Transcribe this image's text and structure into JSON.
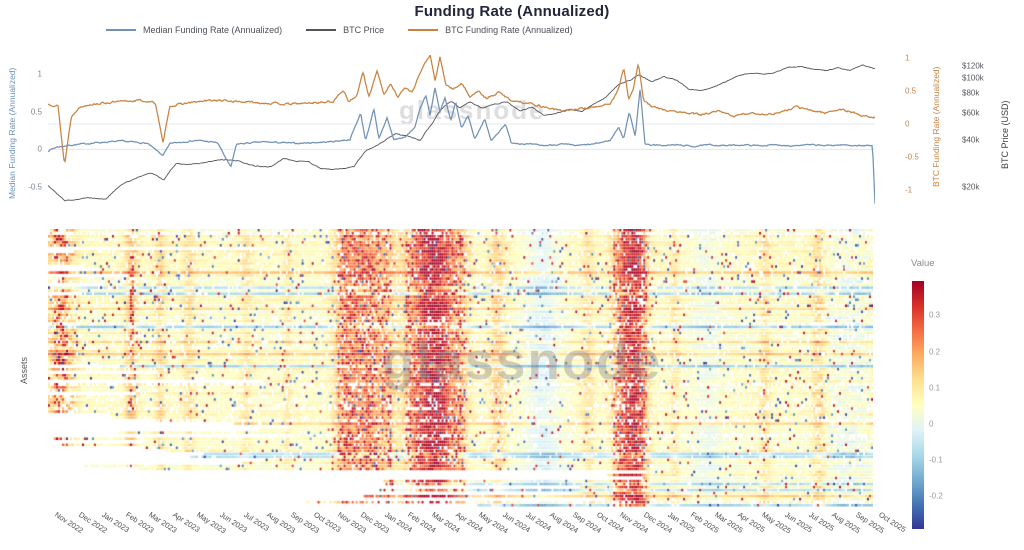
{
  "title": "Funding Rate (Annualized)",
  "watermark": "glassnode",
  "legend": [
    {
      "label": "Median Funding Rate (Annualized)",
      "color": "#7192b4"
    },
    {
      "label": "BTC Price",
      "color": "#53555d"
    },
    {
      "label": "BTC Funding Rate (Annualized)",
      "color": "#c9823f"
    }
  ],
  "axes": {
    "left_funding": {
      "label": "Median Funding Rate (Annualized)",
      "color": "#6b92b5",
      "tick_color": "#7d8896",
      "ticks": [
        {
          "v": 1,
          "label": "1"
        },
        {
          "v": 0.5,
          "label": "0.5"
        },
        {
          "v": 0,
          "label": "0"
        },
        {
          "v": -0.5,
          "label": "-0.5"
        }
      ]
    },
    "right_funding": {
      "label": "BTC Funding Rate (Annualized)",
      "color": "#c9823f",
      "tick_color": "#c08552",
      "ticks": [
        {
          "v": 1,
          "label": "1"
        },
        {
          "v": 0.5,
          "label": "0.5"
        },
        {
          "v": 0,
          "label": "0"
        },
        {
          "v": -0.5,
          "label": "-0.5"
        },
        {
          "v": -1,
          "label": "-1"
        }
      ]
    },
    "right_price": {
      "label": "BTC Price (USD)",
      "color": "#3a3d45",
      "tick_color": "#55585f",
      "ticks": [
        {
          "v": 120000,
          "label": "$120k"
        },
        {
          "v": 100000,
          "label": "$100k"
        },
        {
          "v": 80000,
          "label": "$80k"
        },
        {
          "v": 60000,
          "label": "$60k"
        },
        {
          "v": 40000,
          "label": "$40k"
        },
        {
          "v": 20000,
          "label": "$20k"
        }
      ]
    },
    "heatmap_y_label": "Assets",
    "x_ticks": [
      "Nov 2022",
      "Dec 2022",
      "Jan 2023",
      "Feb 2023",
      "Mar 2023",
      "Apr 2023",
      "May 2023",
      "Jun 2023",
      "Jul 2023",
      "Aug 2023",
      "Sep 2023",
      "Oct 2023",
      "Nov 2023",
      "Dec 2023",
      "Jan 2024",
      "Feb 2024",
      "Mar 2024",
      "Apr 2024",
      "May 2024",
      "Jun 2024",
      "Jul 2024",
      "Aug 2024",
      "Sep 2024",
      "Oct 2024",
      "Nov 2024",
      "Dec 2024",
      "Jan 2025",
      "Feb 2025",
      "Mar 2025",
      "Apr 2025",
      "May 2025",
      "Jun 2025",
      "Jul 2025",
      "Aug 2025",
      "Sep 2025",
      "Oct 2025"
    ]
  },
  "colorbar": {
    "title": "Value",
    "vmin": -0.29,
    "vmax": 0.395,
    "ticks": [
      {
        "v": 0.3,
        "label": "0.3"
      },
      {
        "v": 0.2,
        "label": "0.2"
      },
      {
        "v": 0.1,
        "label": "0.1"
      },
      {
        "v": 0,
        "label": "0"
      },
      {
        "v": -0.1,
        "label": "-0.1"
      },
      {
        "v": -0.2,
        "label": "-0.2"
      }
    ],
    "stops_low_to_high": [
      "#313695",
      "#4575b4",
      "#74add1",
      "#abd9e9",
      "#e0f3f8",
      "#ffffbf",
      "#fee090",
      "#fdae61",
      "#f46d43",
      "#d73027",
      "#a50026"
    ]
  },
  "chart_data": [
    {
      "type": "line",
      "title": "Funding Rate (Annualized)",
      "x_range": [
        "Nov 2022",
        "Oct 2025"
      ],
      "grid": "zero-lines only",
      "legend_position": "top-left",
      "series": [
        {
          "name": "Median Funding Rate (Annualized)",
          "axis": "left_funding",
          "color": "#7192b4",
          "noise_amp": 0.016,
          "seed": 7,
          "keyframes": [
            [
              0,
              -0.02
            ],
            [
              0.01,
              0.03
            ],
            [
              0.03,
              0.06
            ],
            [
              0.06,
              0.09
            ],
            [
              0.09,
              0.11
            ],
            [
              0.12,
              0.08
            ],
            [
              0.139,
              -0.08
            ],
            [
              0.148,
              0.08
            ],
            [
              0.18,
              0.12
            ],
            [
              0.205,
              0.09
            ],
            [
              0.221,
              -0.24
            ],
            [
              0.228,
              0.07
            ],
            [
              0.26,
              0.1
            ],
            [
              0.3,
              0.08
            ],
            [
              0.34,
              0.1
            ],
            [
              0.365,
              0.13
            ],
            [
              0.378,
              0.48
            ],
            [
              0.384,
              0.12
            ],
            [
              0.394,
              0.53
            ],
            [
              0.4,
              0.14
            ],
            [
              0.41,
              0.42
            ],
            [
              0.418,
              0.13
            ],
            [
              0.432,
              0.16
            ],
            [
              0.444,
              0.3
            ],
            [
              0.45,
              0.55
            ],
            [
              0.457,
              0.72
            ],
            [
              0.462,
              0.45
            ],
            [
              0.468,
              0.82
            ],
            [
              0.474,
              0.5
            ],
            [
              0.48,
              0.68
            ],
            [
              0.487,
              0.38
            ],
            [
              0.493,
              0.62
            ],
            [
              0.5,
              0.28
            ],
            [
              0.508,
              0.45
            ],
            [
              0.516,
              0.14
            ],
            [
              0.528,
              0.4
            ],
            [
              0.536,
              0.11
            ],
            [
              0.553,
              0.34
            ],
            [
              0.56,
              0.09
            ],
            [
              0.58,
              0.07
            ],
            [
              0.6,
              0.05
            ],
            [
              0.62,
              0.07
            ],
            [
              0.64,
              0.05
            ],
            [
              0.66,
              0.07
            ],
            [
              0.68,
              0.12
            ],
            [
              0.69,
              0.3
            ],
            [
              0.696,
              0.14
            ],
            [
              0.703,
              0.5
            ],
            [
              0.71,
              0.18
            ],
            [
              0.716,
              0.8
            ],
            [
              0.722,
              0.07
            ],
            [
              0.74,
              0.05
            ],
            [
              0.76,
              0.06
            ],
            [
              0.78,
              0.04
            ],
            [
              0.8,
              0.06
            ],
            [
              0.82,
              0.05
            ],
            [
              0.84,
              0.06
            ],
            [
              0.86,
              0.05
            ],
            [
              0.88,
              0.06
            ],
            [
              0.9,
              0.05
            ],
            [
              0.92,
              0.06
            ],
            [
              0.94,
              0.05
            ],
            [
              0.96,
              0.06
            ],
            [
              0.98,
              0.05
            ],
            [
              0.997,
              0.05
            ],
            [
              1,
              -0.72
            ]
          ]
        },
        {
          "name": "BTC Funding Rate (Annualized)",
          "axis": "right_funding",
          "color": "#c9823f",
          "noise_amp": 0.028,
          "seed": 13,
          "keyframes": [
            [
              0,
              0.3
            ],
            [
              0.012,
              0.28
            ],
            [
              0.02,
              -0.62
            ],
            [
              0.028,
              0.1
            ],
            [
              0.036,
              0.24
            ],
            [
              0.05,
              0.3
            ],
            [
              0.08,
              0.33
            ],
            [
              0.11,
              0.36
            ],
            [
              0.13,
              0.32
            ],
            [
              0.139,
              -0.3
            ],
            [
              0.147,
              0.27
            ],
            [
              0.17,
              0.32
            ],
            [
              0.2,
              0.36
            ],
            [
              0.23,
              0.34
            ],
            [
              0.26,
              0.32
            ],
            [
              0.29,
              0.3
            ],
            [
              0.32,
              0.32
            ],
            [
              0.345,
              0.34
            ],
            [
              0.357,
              0.52
            ],
            [
              0.364,
              0.34
            ],
            [
              0.373,
              0.42
            ],
            [
              0.381,
              0.78
            ],
            [
              0.388,
              0.4
            ],
            [
              0.398,
              0.82
            ],
            [
              0.406,
              0.45
            ],
            [
              0.414,
              0.6
            ],
            [
              0.423,
              0.42
            ],
            [
              0.432,
              0.55
            ],
            [
              0.44,
              0.48
            ],
            [
              0.449,
              0.75
            ],
            [
              0.456,
              0.92
            ],
            [
              0.462,
              1.05
            ],
            [
              0.468,
              0.65
            ],
            [
              0.474,
              1.0
            ],
            [
              0.481,
              0.6
            ],
            [
              0.49,
              0.52
            ],
            [
              0.5,
              0.62
            ],
            [
              0.51,
              0.42
            ],
            [
              0.52,
              0.5
            ],
            [
              0.53,
              0.38
            ],
            [
              0.545,
              0.48
            ],
            [
              0.56,
              0.36
            ],
            [
              0.58,
              0.32
            ],
            [
              0.6,
              0.26
            ],
            [
              0.62,
              0.2
            ],
            [
              0.64,
              0.22
            ],
            [
              0.66,
              0.26
            ],
            [
              0.68,
              0.3
            ],
            [
              0.69,
              0.55
            ],
            [
              0.696,
              0.86
            ],
            [
              0.702,
              0.38
            ],
            [
              0.708,
              0.55
            ],
            [
              0.714,
              0.92
            ],
            [
              0.72,
              0.36
            ],
            [
              0.73,
              0.26
            ],
            [
              0.75,
              0.2
            ],
            [
              0.77,
              0.17
            ],
            [
              0.79,
              0.14
            ],
            [
              0.81,
              0.19
            ],
            [
              0.83,
              0.12
            ],
            [
              0.85,
              0.17
            ],
            [
              0.87,
              0.14
            ],
            [
              0.89,
              0.19
            ],
            [
              0.905,
              0.26
            ],
            [
              0.92,
              0.21
            ],
            [
              0.94,
              0.17
            ],
            [
              0.955,
              0.22
            ],
            [
              0.97,
              0.19
            ],
            [
              0.985,
              0.12
            ],
            [
              1,
              0.1
            ]
          ]
        },
        {
          "name": "BTC Price",
          "axis": "right_price_log_usd",
          "color": "#53555d",
          "noise_amp": 0.012,
          "seed": 29,
          "keyframes": [
            [
              0,
              20500
            ],
            [
              0.02,
              16300
            ],
            [
              0.05,
              17100
            ],
            [
              0.07,
              16700
            ],
            [
              0.09,
              20900
            ],
            [
              0.11,
              23200
            ],
            [
              0.125,
              24600
            ],
            [
              0.14,
              22200
            ],
            [
              0.155,
              28300
            ],
            [
              0.17,
              27900
            ],
            [
              0.19,
              28600
            ],
            [
              0.21,
              30000
            ],
            [
              0.23,
              29300
            ],
            [
              0.25,
              27200
            ],
            [
              0.27,
              26900
            ],
            [
              0.285,
              30500
            ],
            [
              0.3,
              29400
            ],
            [
              0.315,
              29100
            ],
            [
              0.33,
              26100
            ],
            [
              0.35,
              25950
            ],
            [
              0.37,
              27000
            ],
            [
              0.385,
              34400
            ],
            [
              0.4,
              37600
            ],
            [
              0.42,
              43700
            ],
            [
              0.435,
              42400
            ],
            [
              0.45,
              39700
            ],
            [
              0.465,
              51200
            ],
            [
              0.475,
              62400
            ],
            [
              0.487,
              71000
            ],
            [
              0.498,
              64600
            ],
            [
              0.51,
              70500
            ],
            [
              0.525,
              63900
            ],
            [
              0.54,
              67700
            ],
            [
              0.555,
              70400
            ],
            [
              0.57,
              61200
            ],
            [
              0.585,
              65100
            ],
            [
              0.6,
              57400
            ],
            [
              0.615,
              59300
            ],
            [
              0.63,
              63100
            ],
            [
              0.645,
              60900
            ],
            [
              0.66,
              67800
            ],
            [
              0.675,
              75400
            ],
            [
              0.69,
              91100
            ],
            [
              0.705,
              97400
            ],
            [
              0.715,
              104400
            ],
            [
              0.73,
              94400
            ],
            [
              0.745,
              102000
            ],
            [
              0.76,
              96600
            ],
            [
              0.775,
              84500
            ],
            [
              0.79,
              82900
            ],
            [
              0.805,
              87400
            ],
            [
              0.82,
              94600
            ],
            [
              0.835,
              103500
            ],
            [
              0.85,
              107100
            ],
            [
              0.865,
              105600
            ],
            [
              0.88,
              108200
            ],
            [
              0.895,
              117300
            ],
            [
              0.91,
              117900
            ],
            [
              0.925,
              113600
            ],
            [
              0.94,
              111400
            ],
            [
              0.955,
              115700
            ],
            [
              0.97,
              112100
            ],
            [
              0.985,
              121000
            ],
            [
              1,
              114300
            ]
          ]
        }
      ]
    },
    {
      "type": "heatmap",
      "ylabel": "Assets",
      "value_label": "Value",
      "x_categories_months": [
        "Nov 2022",
        "Oct 2025"
      ],
      "rows": 92,
      "cols": 413,
      "seed": 101,
      "base_value": 0.055,
      "value_range": [
        -0.29,
        0.395
      ],
      "colormap": "RdYlBu reversed (red = high positive funding, blue = negative)",
      "bands_t_sigma_amp": [
        [
          0.015,
          0.012,
          0.12
        ],
        [
          0.1,
          0.006,
          0.1
        ],
        [
          0.135,
          0.005,
          0.08
        ],
        [
          0.17,
          0.006,
          0.06
        ],
        [
          0.24,
          0.005,
          0.05
        ],
        [
          0.29,
          0.004,
          0.05
        ],
        [
          0.36,
          0.01,
          0.14
        ],
        [
          0.385,
          0.012,
          0.16
        ],
        [
          0.41,
          0.008,
          0.1
        ],
        [
          0.455,
          0.016,
          0.22
        ],
        [
          0.475,
          0.012,
          0.22
        ],
        [
          0.5,
          0.008,
          0.1
        ],
        [
          0.545,
          0.007,
          0.09
        ],
        [
          0.6,
          0.015,
          -0.07
        ],
        [
          0.655,
          0.006,
          0.06
        ],
        [
          0.7,
          0.01,
          0.22
        ],
        [
          0.716,
          0.008,
          0.22
        ],
        [
          0.76,
          0.004,
          0.05
        ],
        [
          0.8,
          0.012,
          -0.04
        ],
        [
          0.87,
          0.005,
          0.06
        ],
        [
          0.935,
          0.006,
          0.08
        ],
        [
          0.97,
          0.02,
          -0.03
        ]
      ]
    }
  ]
}
